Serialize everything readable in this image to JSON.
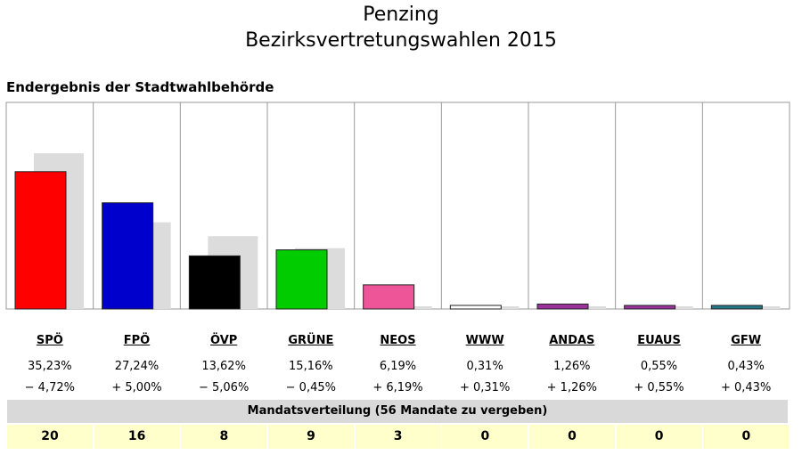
{
  "header": {
    "title_line1": "Penzing",
    "title_line2": "Bezirksvertretungswahlen 2015",
    "subtitle": "Endergebnis der Stadtwahlbehörde"
  },
  "chart_data": {
    "type": "bar",
    "categories": [
      "SPÖ",
      "FPÖ",
      "ÖVP",
      "GRÜNE",
      "NEOS",
      "WWW",
      "ANDAS",
      "EUAUS",
      "GFW"
    ],
    "values": [
      35.23,
      27.24,
      13.62,
      15.16,
      6.19,
      0.31,
      1.26,
      0.55,
      0.43
    ],
    "previous_values": [
      39.95,
      22.24,
      18.68,
      15.61,
      0.0,
      0.0,
      0.0,
      0.0,
      0.0
    ],
    "colors": [
      "#ff0000",
      "#0000cc",
      "#000000",
      "#00cc00",
      "#ee5599",
      "#ffffff",
      "#993399",
      "#993399",
      "#227788"
    ],
    "previous_color": "#dcdcdc",
    "percent_labels": [
      "35,23%",
      "27,24%",
      "13,62%",
      "15,16%",
      "6,19%",
      "0,31%",
      "1,26%",
      "0,55%",
      "0,43%"
    ],
    "diff_labels": [
      "− 4,72%",
      "+ 5,00%",
      "− 5,06%",
      "− 0,45%",
      "+ 6,19%",
      "+ 0,31%",
      "+ 1,26%",
      "+ 0,55%",
      "+ 0,43%"
    ],
    "ylim": [
      0,
      53
    ]
  },
  "mandates": {
    "header": "Mandatsverteilung (56 Mandate zu vergeben)",
    "values": [
      "20",
      "16",
      "8",
      "9",
      "3",
      "0",
      "0",
      "0",
      "0"
    ]
  }
}
